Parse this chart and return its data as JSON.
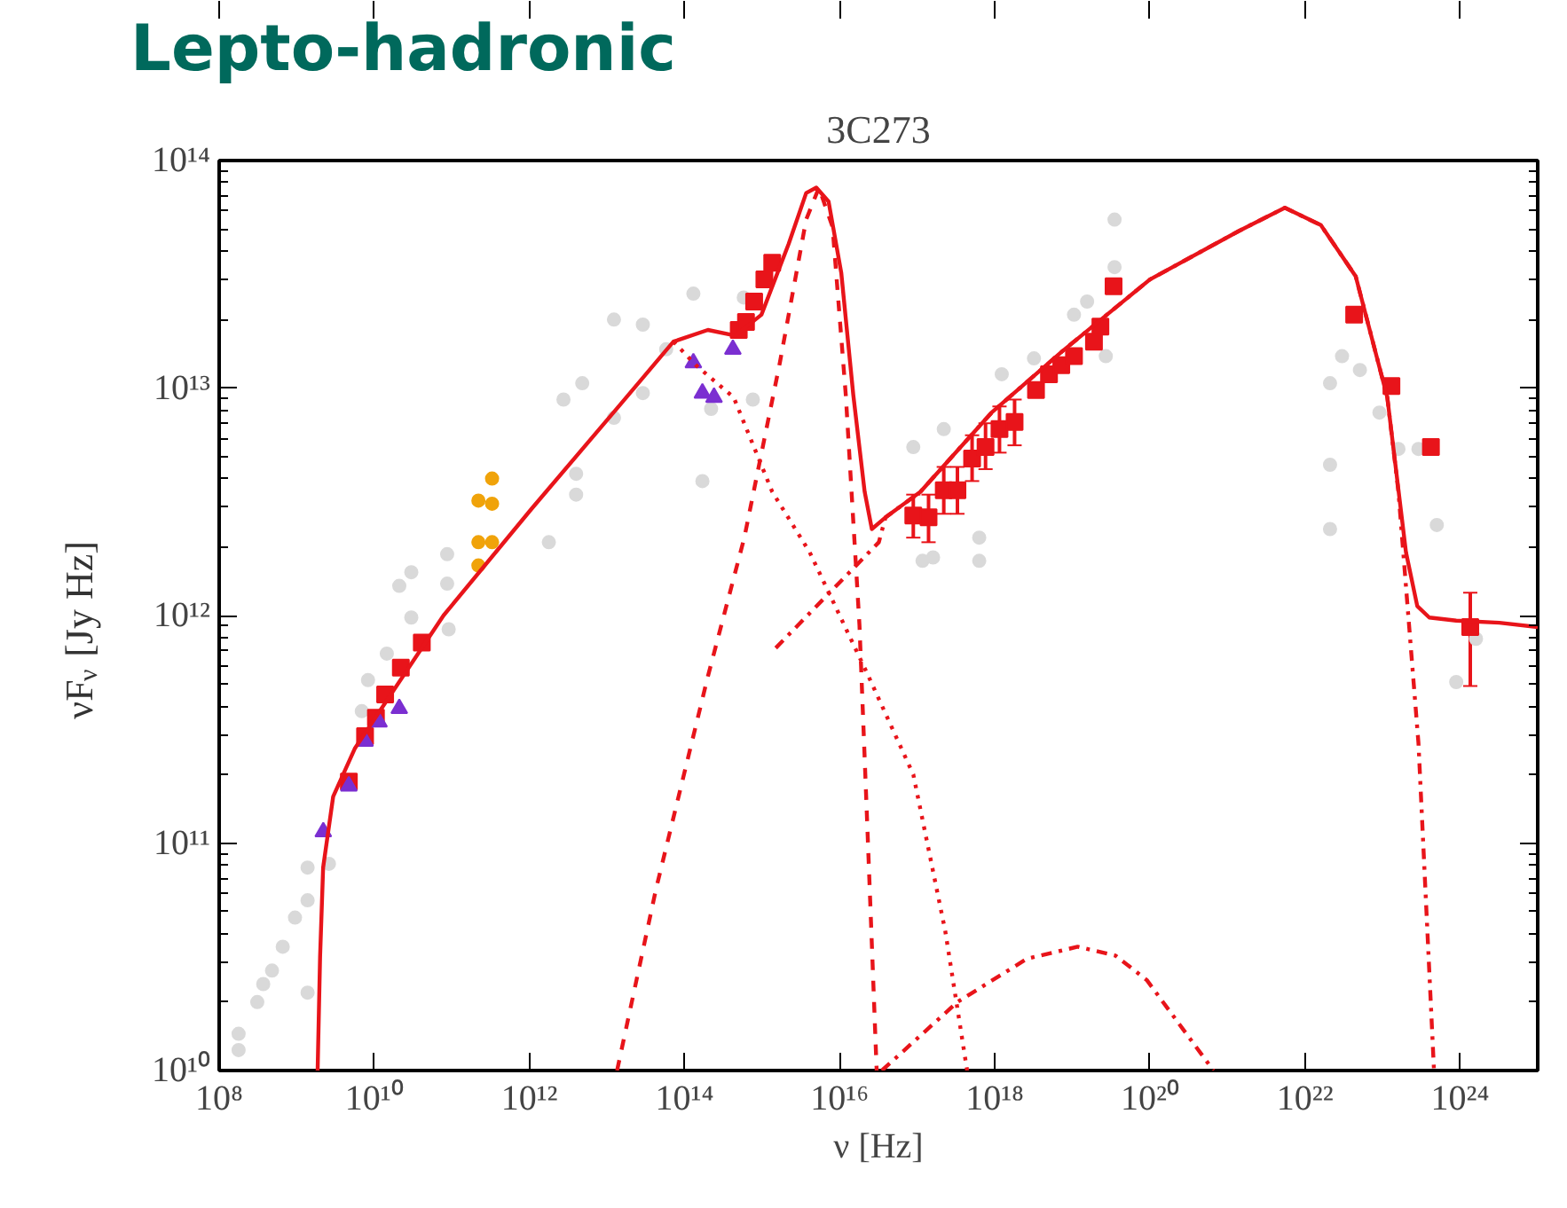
{
  "chart_data": {
    "type": "line",
    "title": "3C273",
    "xlabel": "ν [Hz]",
    "ylabel": "νF$_{ν}$ [Jy Hz]",
    "log": "xy",
    "grid": false,
    "annotations": [
      "Lepto-hadronic"
    ],
    "xlim": [
      100000000.0,
      1e+25
    ],
    "ylim": [
      10000000000.0,
      100000000000000.0
    ],
    "xticks": [
      {
        "value": 100000000.0,
        "label": "10⁸"
      },
      {
        "value": 10000000000.0,
        "label": "10¹⁰"
      },
      {
        "value": 1000000000000.0,
        "label": "10¹²"
      },
      {
        "value": 100000000000000.0,
        "label": "10¹⁴"
      },
      {
        "value": 1e+16,
        "label": "10¹⁶"
      },
      {
        "value": 1e+18,
        "label": "10¹⁸"
      },
      {
        "value": 1e+20,
        "label": "10²⁰"
      },
      {
        "value": 1e+22,
        "label": "10²²"
      },
      {
        "value": 1e+24,
        "label": "10²⁴"
      }
    ],
    "yticks": [
      {
        "value": 10000000000.0,
        "label": "10¹⁰"
      },
      {
        "value": 100000000000.0,
        "label": "10¹¹"
      },
      {
        "value": 1000000000000.0,
        "label": "10¹²"
      },
      {
        "value": 10000000000000.0,
        "label": "10¹³"
      },
      {
        "value": 100000000000000.0,
        "label": "10¹⁴"
      }
    ],
    "series": [
      {
        "type": "scatter",
        "marker": "circle",
        "color": "#d9d9d9",
        "x": [
          178000000.0,
          178000000.0,
          310000000.0,
          370000000.0,
          480000000.0,
          660000000.0,
          950000000.0,
          1380000000.0,
          1380000000.0,
          1380000000.0,
          2600000000.0,
          6900000000.0,
          8300000000.0,
          14500000000.0,
          21000000000.0,
          30000000000.0,
          30000000000.0,
          87000000000.0,
          87000000000.0,
          91000000000.0,
          1780000000000.0,
          4000000000000.0,
          4000000000000.0,
          2750000000000.0,
          4800000000000.0,
          12300000000000.0,
          12300000000000.0,
          29000000000000.0,
          29000000000000.0,
          58000000000000.0,
          130000000000000.0,
          170000000000000.0,
          220000000000000.0,
          580000000000000.0,
          760000000000000.0,
          8.9e+16,
          1.17e+17,
          1.6e+17,
          2.2e+17,
          6.3e+17,
          6.3e+17,
          1.23e+18,
          3.2e+18,
          1.05e+19,
          1.55e+19,
          3.5e+19,
          3.5e+19,
          2.7e+19,
          2.1e+22,
          2.1e+22,
          2.1e+22,
          3e+22,
          5.1e+22,
          9.1e+22,
          1.6e+23,
          2.9e+23,
          5e+23,
          8.9e+23,
          1.6e+24
        ],
        "values": [
          12300000000.0,
          14500000000.0,
          20000000000.0,
          24000000000.0,
          27500000000.0,
          35000000000.0,
          47000000000.0,
          56000000000.0,
          78000000000.0,
          22000000000.0,
          81000000000.0,
          380000000000.0,
          520000000000.0,
          680000000000.0,
          1350000000000.0,
          1550000000000.0,
          980000000000.0,
          1860000000000.0,
          1380000000000.0,
          870000000000.0,
          2100000000000.0,
          4200000000000.0,
          3400000000000.0,
          8900000000000.0,
          10500000000000.0,
          20000000000000.0,
          7400000000000.0,
          19000000000000.0,
          9500000000000.0,
          14800000000000.0,
          26000000000000.0,
          3900000000000.0,
          8100000000000.0,
          25000000000000.0,
          8900000000000.0,
          5500000000000.0,
          1740000000000.0,
          1800000000000.0,
          6600000000000.0,
          2200000000000.0,
          1740000000000.0,
          11500000000000.0,
          13500000000000.0,
          21000000000000.0,
          24000000000000.0,
          55000000000000.0,
          34000000000000.0,
          13800000000000.0,
          10500000000000.0,
          4600000000000.0,
          2400000000000.0,
          13800000000000.0,
          12000000000000.0,
          7800000000000.0,
          5400000000000.0,
          5400000000000.0,
          2500000000000.0,
          510000000000.0,
          790000000000.0
        ]
      },
      {
        "type": "scatter",
        "marker": "circle",
        "color": "#f0a30a",
        "x": [
          220000000000.0,
          330000000000.0,
          330000000000.0,
          220000000000.0,
          330000000000.0,
          220000000000.0
        ],
        "values": [
          3200000000000.0,
          4000000000000.0,
          3100000000000.0,
          2100000000000.0,
          2100000000000.0,
          1660000000000.0
        ]
      },
      {
        "type": "scatter",
        "marker": "square",
        "color": "#e8141a",
        "x": [
          4700000000.0,
          7600000000.0,
          10500000000.0,
          13800000000.0,
          22000000000.0,
          41000000000.0,
          500000000000000.0,
          620000000000000.0,
          790000000000000.0,
          1070000000000000.0,
          1350000000000000.0,
          8.9e+16,
          1.4e+17,
          2.2e+17,
          3.3e+17,
          5.1e+17,
          7.6e+17,
          1.15e+18,
          1.8e+18,
          3.4e+18,
          5e+18,
          7.2e+18,
          1.05e+19,
          1.9e+19,
          2.3e+19,
          3.4e+19,
          4.3e+22,
          1.3e+23,
          4.2e+23,
          1.35e+24
        ],
        "values": [
          186000000000.0,
          295000000000.0,
          355000000000.0,
          450000000000.0,
          590000000000.0,
          760000000000.0,
          18000000000000.0,
          19500000000000.0,
          24000000000000.0,
          30000000000000.0,
          35500000000000.0,
          2750000000000.0,
          2700000000000.0,
          3550000000000.0,
          3550000000000.0,
          4900000000000.0,
          5500000000000.0,
          6600000000000.0,
          7100000000000.0,
          9800000000000.0,
          11500000000000.0,
          12600000000000.0,
          13800000000000.0,
          16000000000000.0,
          18600000000000.0,
          28000000000000.0,
          21000000000000.0,
          10200000000000.0,
          5500000000000.0,
          890000000000.0
        ],
        "errors": [
          null,
          null,
          null,
          null,
          null,
          null,
          null,
          null,
          null,
          null,
          null,
          [
            2200000000000.0,
            3400000000000.0
          ],
          [
            2100000000000.0,
            3400000000000.0
          ],
          [
            2800000000000.0,
            4500000000000.0
          ],
          [
            2800000000000.0,
            4500000000000.0
          ],
          [
            3900000000000.0,
            6200000000000.0
          ],
          [
            4400000000000.0,
            7000000000000.0
          ],
          [
            5200000000000.0,
            8300000000000.0
          ],
          [
            5600000000000.0,
            8900000000000.0
          ],
          null,
          null,
          null,
          null,
          null,
          null,
          null,
          null,
          null,
          null,
          [
            490000000000.0,
            1260000000000.0
          ]
        ]
      },
      {
        "type": "scatter",
        "marker": "triangle",
        "color": "#7b2fd1",
        "x": [
          2200000000.0,
          4700000000.0,
          7600000000.0,
          11500000000.0,
          21000000000.0,
          130000000000000.0,
          170000000000000.0,
          240000000000000.0,
          420000000000000.0
        ],
        "values": [
          112000000000.0,
          178000000000.0,
          280000000000.0,
          340000000000.0,
          390000000000.0,
          12900000000000.0,
          9500000000000.0,
          9100000000000.0,
          14800000000000.0
        ]
      },
      {
        "line_style": "dashed",
        "color": "#e8141a",
        "x": [
          13500000000000.0,
          43000000000000.0,
          200000000000000.0,
          590000000000000.0,
          1700000000000000.0,
          3700000000000000.0,
          5400000000000000.0,
          8100000000000000.0,
          1.2e+16,
          1.8e+16,
          2.3e+16,
          3e+16
        ],
        "values": [
          10000000000.0,
          63000000000.0,
          540000000000.0,
          2200000000000.0,
          13000000000000.0,
          55000000000000.0,
          76000000000000.0,
          51000000000000.0,
          9300000000000.0,
          910000000000.0,
          107000000000.0,
          10000000000.0
        ]
      },
      {
        "line_style": "dotted",
        "color": "#e8141a",
        "x": [
          72000000000000.0,
          140000000000000.0,
          430000000000000.0,
          1350000000000000.0,
          4100000000000000.0,
          2.3e+16,
          8.9e+16,
          2.3e+17,
          4.4e+17
        ],
        "values": [
          16000000000000.0,
          12600000000000.0,
          9100000000000.0,
          3500000000000.0,
          1900000000000.0,
          550000000000.0,
          200000000000.0,
          41000000000.0,
          10000000000.0
        ]
      },
      {
        "line_style": "dashdot",
        "color": "#e8141a",
        "x": [
          1500000000000000.0,
          3.2e+16,
          3.9e+16,
          1.1e+17,
          9.1e+17,
          7.4e+18,
          1e+20,
          1.4e+21,
          5.5e+21,
          1.6e+22,
          4.5e+22,
          1.15e+23,
          1.6e+23,
          2.9e+23,
          4.6e+23
        ],
        "values": [
          720000000000.0,
          2100000000000.0,
          2700000000000.0,
          3500000000000.0,
          7800000000000.0,
          14500000000000.0,
          30000000000000.0,
          49000000000000.0,
          62000000000000.0,
          52000000000000.0,
          31000000000000.0,
          9100000000000.0,
          3500000000000.0,
          275000000000.0,
          10000000000.0
        ]
      },
      {
        "line_style": "dashdot",
        "color": "#e8141a",
        "x": [
          3.5e+16,
          3.3e+17,
          2.6e+18,
          1.17e+19,
          3.6e+19,
          9.1e+19,
          6.6e+20
        ],
        "values": [
          10000000000.0,
          20000000000.0,
          31000000000.0,
          35000000000.0,
          32000000000.0,
          25000000000.0,
          10000000000.0
        ]
      },
      {
        "line_style": "solid",
        "color": "#e8141a",
        "x": [
          1860000000.0,
          2000000000.0,
          2190000000.0,
          2950000000.0,
          5600000000.0,
          78000000000.0,
          1070000000000.0,
          15000000000000.0,
          72000000000000.0,
          200000000000000.0,
          450000000000000.0,
          980000000000000.0,
          2200000000000000.0,
          3700000000000000.0,
          5000000000000000.0,
          7200000000000000.0,
          1.05e+16,
          1.5e+16,
          2.1e+16,
          2.6e+16,
          3.9e+16,
          1.1e+17,
          9.1e+17,
          7.4e+18,
          1e+20,
          1.4e+21,
          5.5e+21,
          1.6e+22,
          4.5e+22,
          1.15e+23,
          2e+23,
          2.8e+23,
          4e+23,
          8.9e+23,
          3.2e+24,
          1e+25
        ],
        "values": [
          10000000000.0,
          31600000000.0,
          78000000000.0,
          160000000000.0,
          260000000000.0,
          1000000000000.0,
          2950000000000.0,
          8500000000000.0,
          16000000000000.0,
          18000000000000.0,
          17000000000000.0,
          21000000000000.0,
          43000000000000.0,
          72000000000000.0,
          76000000000000.0,
          66000000000000.0,
          32000000000000.0,
          9300000000000.0,
          3500000000000.0,
          2400000000000.0,
          2700000000000.0,
          3500000000000.0,
          7800000000000.0,
          14500000000000.0,
          30000000000000.0,
          49000000000000.0,
          62000000000000.0,
          52000000000000.0,
          31000000000000.0,
          9100000000000.0,
          1900000000000.0,
          1100000000000.0,
          980000000000.0,
          950000000000.0,
          930000000000.0,
          890000000000.0
        ]
      }
    ]
  }
}
